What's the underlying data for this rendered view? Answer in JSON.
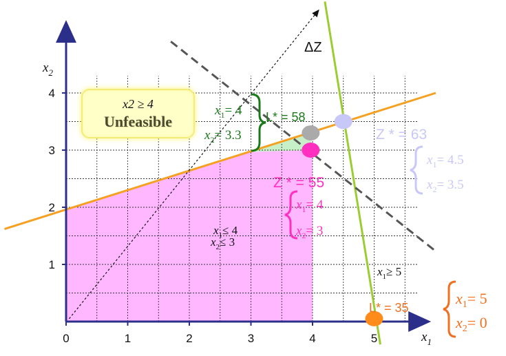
{
  "chart_data": {
    "type": "line",
    "title": "",
    "xlabel": "x1",
    "ylabel": "x2",
    "xlim": [
      0,
      5.7
    ],
    "ylim": [
      0,
      5.3
    ],
    "x_ticks": [
      "0",
      "1",
      "2",
      "3",
      "4",
      "5"
    ],
    "y_ticks": [
      "1",
      "2",
      "3",
      "4"
    ],
    "grid": true,
    "lines": [
      {
        "name": "constraint-orange",
        "color": "#f5a020",
        "points": [
          [
            -1.0,
            1.62
          ],
          [
            6.0,
            4.0
          ]
        ]
      },
      {
        "name": "constraint-green",
        "color": "#9acd32",
        "points": [
          [
            4.2,
            5.6
          ],
          [
            5.1,
            -0.4
          ]
        ]
      },
      {
        "name": "objective-gray-dashed",
        "color": "#555555",
        "points": [
          [
            1.7,
            4.9
          ],
          [
            6.0,
            1.23
          ]
        ]
      },
      {
        "name": "delta-z-direction",
        "color": "#111111",
        "points": [
          [
            0.05,
            0.05
          ],
          [
            4.1,
            5.45
          ]
        ]
      }
    ],
    "regions": [
      {
        "name": "x1<=4, x2<=3",
        "color": "#ffb8ff",
        "points": [
          [
            0,
            0
          ],
          [
            0,
            1.95
          ],
          [
            3.0,
            2.97
          ],
          [
            4.0,
            3.0
          ],
          [
            4.0,
            0
          ]
        ]
      },
      {
        "name": "x2>=3 sliver",
        "color": "#c8f0c8",
        "points": [
          [
            3.0,
            2.97
          ],
          [
            3.95,
            3.3
          ],
          [
            4.0,
            3.0
          ]
        ]
      }
    ],
    "points": [
      {
        "name": "optimum-lp",
        "x": 4.5,
        "y": 3.5,
        "color": "#c8c8f8"
      },
      {
        "name": "branch-gray",
        "x": 3.97,
        "y": 3.3,
        "color": "#aaaaaa"
      },
      {
        "name": "branch-magenta",
        "x": 3.97,
        "y": 3.0,
        "color": "#ff30c0"
      },
      {
        "name": "branch-orange",
        "x": 5.0,
        "y": 0.05,
        "color": "#ff8c1a"
      }
    ],
    "annotations": [
      {
        "text": "ΔZ",
        "color": "#111111"
      },
      {
        "text": "x1 = 4",
        "color": "#1a7a1a"
      },
      {
        "text": "x2 = 3.3",
        "color": "#1a7a1a"
      },
      {
        "text": "L* = 58",
        "color": "#1a7a1a"
      },
      {
        "text": "Z * = 63",
        "color": "#c8c8f8"
      },
      {
        "text": "x1 = 4.5",
        "color": "#c8c8f8"
      },
      {
        "text": "x2 = 3.5",
        "color": "#c8c8f8"
      },
      {
        "text": "Z * = 55",
        "color": "#ff30c0"
      },
      {
        "text": "x1 = 4",
        "color": "#ff30c0"
      },
      {
        "text": "x2 = 3",
        "color": "#ff30c0"
      },
      {
        "text": "x1 ≤ 4",
        "color": "#111111"
      },
      {
        "text": "x2 ≤ 3",
        "color": "#111111"
      },
      {
        "text": "x1 ≥ 5",
        "color": "#111111"
      },
      {
        "text": "L* = 35",
        "color": "#f07020"
      },
      {
        "text": "x1 = 5",
        "color": "#f07020"
      },
      {
        "text": "x2 = 0",
        "color": "#f07020"
      }
    ]
  },
  "unfeasible_box": {
    "condition": "x2 ≥ 4",
    "label": "Unfeasible"
  },
  "text": {
    "delta_z": "ΔZ",
    "axis_x": "x",
    "axis_x_sub": "1",
    "axis_y": "x",
    "axis_y_sub": "2",
    "green_x1": "= 4",
    "green_x2": "= 3.3",
    "green_l": "L* = 58",
    "blue_z": "Z * = 63",
    "blue_x1": "= 4.5",
    "blue_x2": "= 3.5",
    "pink_z": "Z * = 55",
    "pink_x1": "= 4",
    "pink_x2": "= 3",
    "black_x1": "≤ 4",
    "black_x2": "≤ 3",
    "right_x1": "≥ 5",
    "orange_l": "L* = 35",
    "orange_x1": "= 5",
    "orange_x2": "= 0"
  }
}
